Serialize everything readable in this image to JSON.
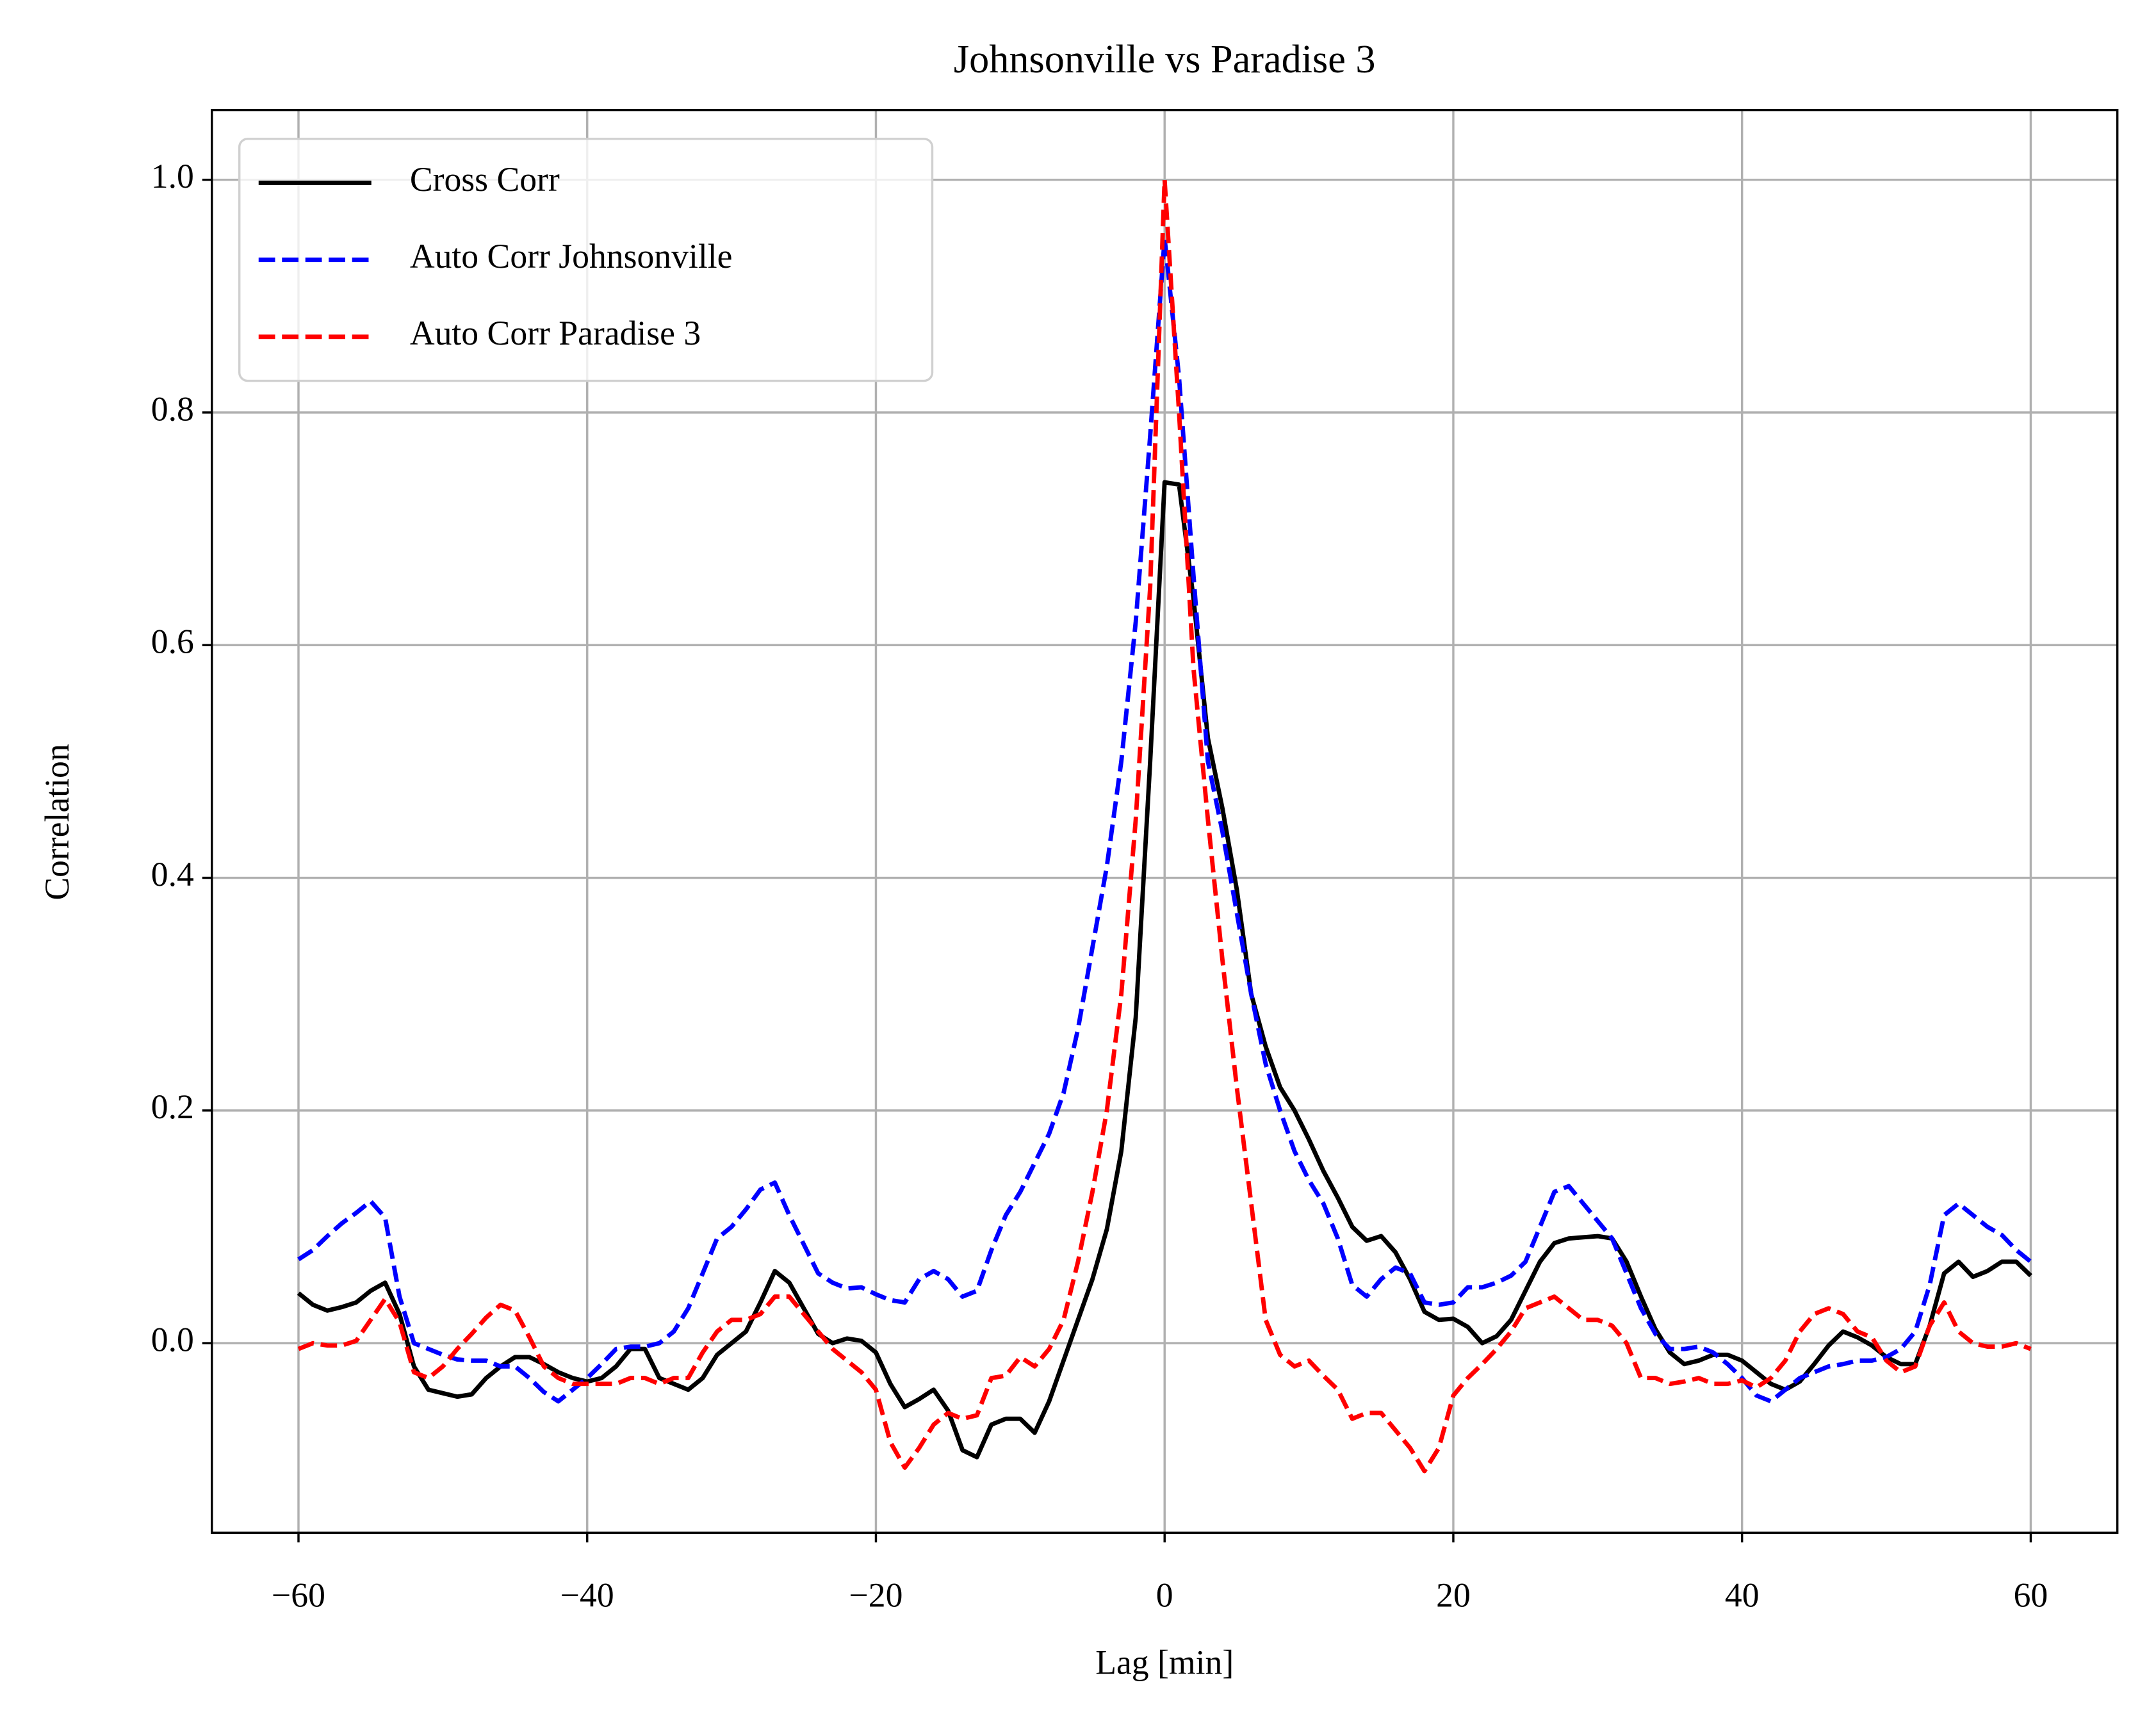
{
  "chart_data": {
    "type": "line",
    "title": "Johnsonville vs Paradise 3",
    "xlabel": "Lag [min]",
    "ylabel": "Correlation",
    "x": [
      -60,
      -59,
      -58,
      -57,
      -56,
      -55,
      -54,
      -53,
      -52,
      -51,
      -50,
      -49,
      -48,
      -47,
      -46,
      -45,
      -44,
      -43,
      -42,
      -41,
      -40,
      -39,
      -38,
      -37,
      -36,
      -35,
      -34,
      -33,
      -32,
      -31,
      -30,
      -29,
      -28,
      -27,
      -26,
      -25,
      -24,
      -23,
      -22,
      -21,
      -20,
      -19,
      -18,
      -17,
      -16,
      -15,
      -14,
      -13,
      -12,
      -11,
      -10,
      -9,
      -8,
      -7,
      -6,
      -5,
      -4,
      -3,
      -2,
      -1,
      0,
      1,
      2,
      3,
      4,
      5,
      6,
      7,
      8,
      9,
      10,
      11,
      12,
      13,
      14,
      15,
      16,
      17,
      18,
      19,
      20,
      21,
      22,
      23,
      24,
      25,
      26,
      27,
      28,
      29,
      30,
      31,
      32,
      33,
      34,
      35,
      36,
      37,
      38,
      39,
      40,
      41,
      42,
      43,
      44,
      45,
      46,
      47,
      48,
      49,
      50,
      51,
      52,
      53,
      54,
      55,
      56,
      57,
      58,
      59,
      60
    ],
    "series": [
      {
        "name": "Cross Corr",
        "color": "#000000",
        "dash": false,
        "values": [
          0.043,
          0.033,
          0.028,
          0.031,
          0.035,
          0.045,
          0.052,
          0.025,
          -0.02,
          -0.04,
          -0.043,
          -0.046,
          -0.044,
          -0.03,
          -0.02,
          -0.012,
          -0.012,
          -0.018,
          -0.025,
          -0.03,
          -0.033,
          -0.03,
          -0.02,
          -0.005,
          -0.005,
          -0.03,
          -0.035,
          -0.04,
          -0.03,
          -0.01,
          0.0,
          0.01,
          0.035,
          0.062,
          0.052,
          0.03,
          0.008,
          0.0,
          0.004,
          0.002,
          -0.008,
          -0.035,
          -0.055,
          -0.048,
          -0.04,
          -0.058,
          -0.092,
          -0.098,
          -0.07,
          -0.065,
          -0.065,
          -0.077,
          -0.05,
          -0.015,
          0.02,
          0.055,
          0.098,
          0.165,
          0.28,
          0.5,
          0.74,
          0.738,
          0.64,
          0.52,
          0.46,
          0.39,
          0.3,
          0.255,
          0.22,
          0.2,
          0.175,
          0.148,
          0.125,
          0.1,
          0.088,
          0.092,
          0.078,
          0.055,
          0.027,
          0.02,
          0.021,
          0.014,
          0.0,
          0.006,
          0.02,
          0.045,
          0.07,
          0.086,
          0.09,
          0.091,
          0.092,
          0.09,
          0.07,
          0.04,
          0.012,
          -0.008,
          -0.018,
          -0.015,
          -0.01,
          -0.01,
          -0.015,
          -0.025,
          -0.035,
          -0.04,
          -0.033,
          -0.018,
          -0.002,
          0.01,
          0.005,
          -0.002,
          -0.012,
          -0.018,
          -0.018,
          0.015,
          0.06,
          0.07,
          0.057,
          0.062,
          0.07,
          0.07,
          0.058
        ]
      },
      {
        "name": "Auto Corr Johnsonville",
        "color": "#0000ff",
        "dash": true,
        "values": [
          0.072,
          0.08,
          0.092,
          0.103,
          0.112,
          0.122,
          0.108,
          0.04,
          0.0,
          -0.005,
          -0.01,
          -0.014,
          -0.015,
          -0.015,
          -0.02,
          -0.02,
          -0.03,
          -0.042,
          -0.05,
          -0.04,
          -0.03,
          -0.018,
          -0.005,
          -0.003,
          -0.003,
          0.0,
          0.01,
          0.03,
          0.06,
          0.09,
          0.1,
          0.115,
          0.132,
          0.138,
          0.11,
          0.085,
          0.06,
          0.052,
          0.047,
          0.048,
          0.042,
          0.037,
          0.035,
          0.055,
          0.062,
          0.055,
          0.04,
          0.045,
          0.08,
          0.11,
          0.13,
          0.155,
          0.18,
          0.215,
          0.27,
          0.34,
          0.41,
          0.5,
          0.62,
          0.78,
          0.95,
          0.83,
          0.66,
          0.5,
          0.44,
          0.37,
          0.3,
          0.24,
          0.2,
          0.165,
          0.14,
          0.12,
          0.09,
          0.05,
          0.04,
          0.055,
          0.065,
          0.06,
          0.035,
          0.033,
          0.035,
          0.048,
          0.048,
          0.052,
          0.058,
          0.07,
          0.1,
          0.13,
          0.135,
          0.12,
          0.105,
          0.09,
          0.06,
          0.03,
          0.008,
          -0.005,
          -0.005,
          -0.003,
          -0.008,
          -0.018,
          -0.03,
          -0.045,
          -0.05,
          -0.04,
          -0.03,
          -0.025,
          -0.02,
          -0.018,
          -0.015,
          -0.015,
          -0.012,
          -0.005,
          0.01,
          0.05,
          0.11,
          0.12,
          0.11,
          0.1,
          0.093,
          0.08,
          0.07
        ]
      },
      {
        "name": "Auto Corr Paradise 3",
        "color": "#ff0000",
        "dash": true,
        "values": [
          -0.005,
          0.0,
          -0.002,
          -0.002,
          0.002,
          0.02,
          0.038,
          0.018,
          -0.025,
          -0.03,
          -0.02,
          -0.005,
          0.008,
          0.022,
          0.033,
          0.028,
          0.005,
          -0.02,
          -0.03,
          -0.035,
          -0.035,
          -0.035,
          -0.035,
          -0.03,
          -0.03,
          -0.035,
          -0.03,
          -0.03,
          -0.008,
          0.01,
          0.02,
          0.02,
          0.025,
          0.04,
          0.04,
          0.025,
          0.01,
          -0.005,
          -0.015,
          -0.025,
          -0.04,
          -0.085,
          -0.107,
          -0.09,
          -0.07,
          -0.06,
          -0.065,
          -0.062,
          -0.03,
          -0.028,
          -0.012,
          -0.02,
          -0.005,
          0.02,
          0.07,
          0.13,
          0.2,
          0.3,
          0.45,
          0.65,
          1.0,
          0.8,
          0.58,
          0.45,
          0.33,
          0.22,
          0.12,
          0.02,
          -0.01,
          -0.02,
          -0.015,
          -0.028,
          -0.04,
          -0.065,
          -0.06,
          -0.06,
          -0.075,
          -0.09,
          -0.11,
          -0.09,
          -0.045,
          -0.03,
          -0.018,
          -0.005,
          0.01,
          0.03,
          0.035,
          0.04,
          0.03,
          0.02,
          0.02,
          0.015,
          0.0,
          -0.03,
          -0.03,
          -0.035,
          -0.033,
          -0.03,
          -0.035,
          -0.035,
          -0.032,
          -0.038,
          -0.03,
          -0.015,
          0.01,
          0.025,
          0.03,
          0.025,
          0.01,
          0.005,
          -0.015,
          -0.025,
          -0.02,
          0.015,
          0.035,
          0.01,
          0.0,
          -0.003,
          -0.003,
          0.0,
          -0.005
        ]
      }
    ],
    "xlim": [
      -66,
      66
    ],
    "ylim": [
      -0.163,
      1.06
    ],
    "xticks": [
      {
        "value": -60,
        "label": "−60"
      },
      {
        "value": -40,
        "label": "−40"
      },
      {
        "value": -20,
        "label": "−20"
      },
      0,
      20,
      40,
      60
    ],
    "yticks": [
      {
        "value": 0,
        "label": "0.0"
      },
      0.2,
      0.4,
      0.6,
      0.8,
      {
        "value": 1,
        "label": "1.0"
      }
    ],
    "grid": true,
    "legend": "upper left"
  }
}
